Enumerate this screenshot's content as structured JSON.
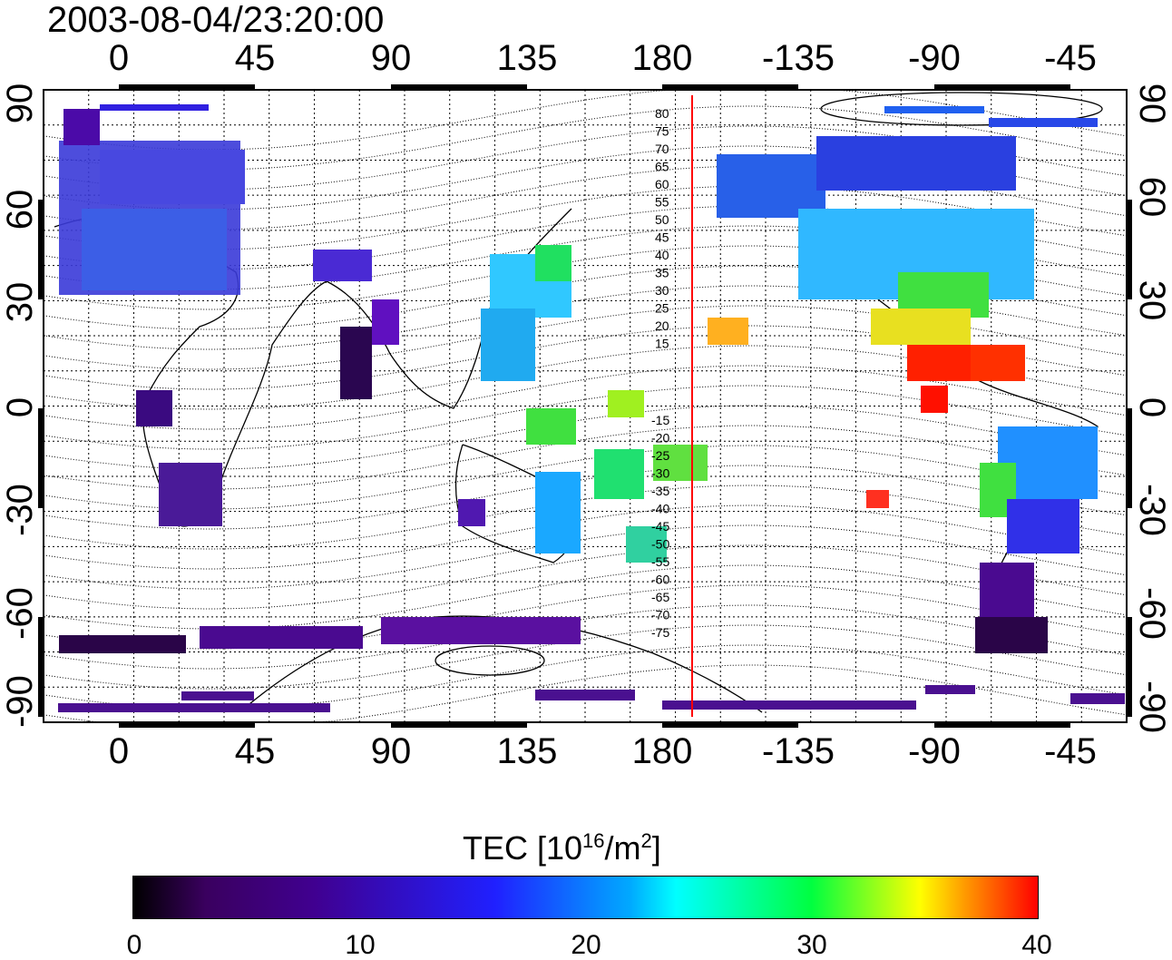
{
  "timestamp": "2003-08-04/23:20:00",
  "map": {
    "projection": "cylindrical",
    "top_axis_ticks": [
      "0",
      "45",
      "90",
      "135",
      "180",
      "-135",
      "-90",
      "-45"
    ],
    "bottom_axis_ticks": [
      "0",
      "45",
      "90",
      "135",
      "180",
      "-135",
      "-90",
      "-45"
    ],
    "left_axis_ticks": [
      "90",
      "60",
      "30",
      "0",
      "-30",
      "-60",
      "-90"
    ],
    "right_axis_ticks": [
      "90",
      "60",
      "30",
      "0",
      "-30",
      "-60",
      "-90"
    ],
    "meridian_line_color": "#ff0000",
    "contour_labels_north": [
      "80",
      "75",
      "70",
      "65",
      "60",
      "55",
      "50",
      "45",
      "40",
      "35",
      "30",
      "25",
      "20",
      "15"
    ],
    "contour_labels_south": [
      "-15",
      "-20",
      "-25",
      "-30",
      "-35",
      "-40",
      "-45",
      "-50",
      "-55",
      "-60",
      "-65",
      "-70",
      "-75"
    ]
  },
  "colorbar": {
    "title": "TEC  [10",
    "title_sup1": "16",
    "title_mid": "/m",
    "title_sup2": "2",
    "title_end": "]",
    "ticks": [
      "0",
      "10",
      "20",
      "30",
      "40"
    ],
    "range": [
      0,
      40
    ],
    "colors": [
      "#000000",
      "#400090",
      "#2020ff",
      "#00ffff",
      "#00ff40",
      "#ffff00",
      "#ff0000"
    ]
  }
}
